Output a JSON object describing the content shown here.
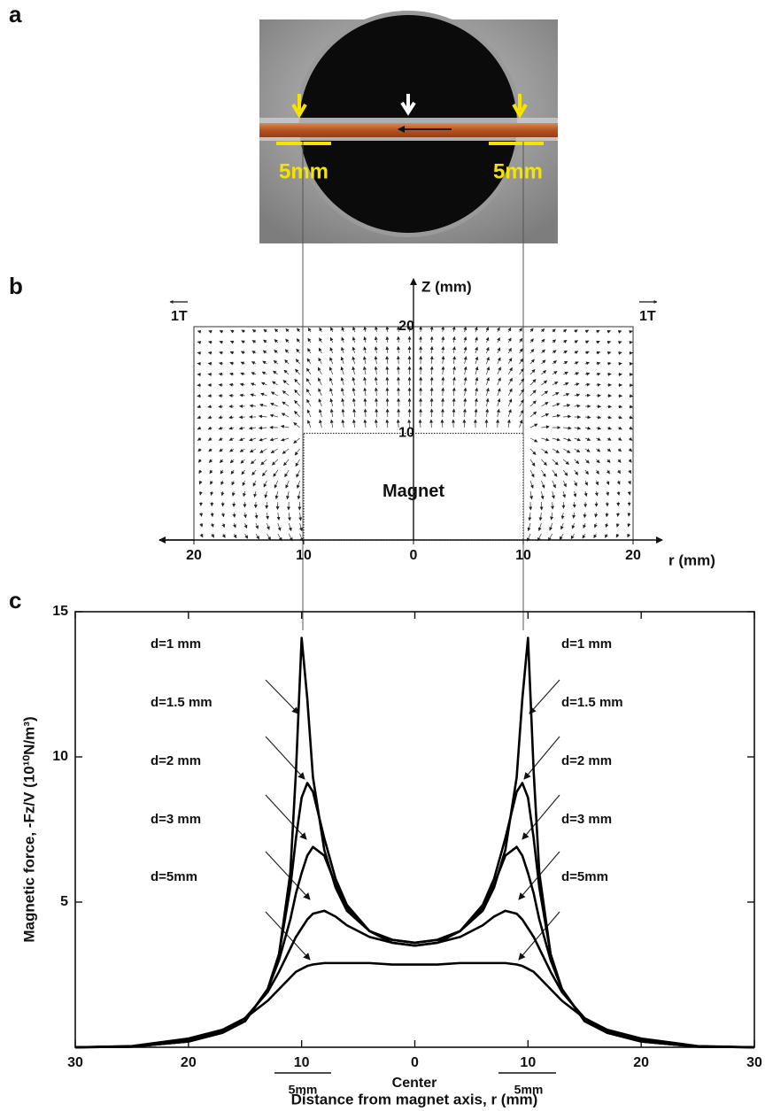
{
  "panel_labels": [
    "a",
    "b",
    "c"
  ],
  "photo": {
    "labels": [
      "5mm",
      "5mm"
    ]
  },
  "chart_data": [
    {
      "type": "quiver",
      "ylabel": "Z (mm)",
      "xlabel": "r (mm)",
      "field_labels": [
        "1T",
        "1T"
      ],
      "magnet_label": "Magnet",
      "xlim": [
        -20,
        20
      ],
      "ylim": [
        0,
        20
      ],
      "xticks": [
        {
          "value": -20,
          "label": "20"
        },
        {
          "value": -10,
          "label": "10"
        },
        0,
        10,
        20
      ],
      "yticks": [
        10,
        20
      ]
    },
    {
      "type": "line",
      "ylabel": "Magnetic force, -Fz/V (10¹⁰N/m³)",
      "xlabel": "Distance from magnet axis, r (mm)",
      "center_label": "Center",
      "scale_labels": [
        "5mm",
        "5mm"
      ],
      "annotations": [
        "d=1 mm",
        "d=1.5 mm",
        "d=2 mm",
        "d=3 mm",
        "d=5mm",
        "d=1 mm",
        "d=1.5 mm",
        "d=2 mm",
        "d=3 mm",
        "d=5mm"
      ],
      "xlim": [
        -30,
        30
      ],
      "ylim": [
        0,
        15
      ],
      "xticks": [
        {
          "value": -30,
          "label": "30"
        },
        {
          "value": -20,
          "label": "20"
        },
        {
          "value": -10,
          "label": "10"
        },
        0,
        10,
        20,
        30
      ],
      "yticks": [
        5,
        10,
        15
      ],
      "x": [
        -30,
        -25,
        -20,
        -17,
        -15,
        -13,
        -12,
        -11,
        -10.5,
        -10,
        -9.5,
        -9,
        -8,
        -7,
        -6,
        -4,
        -2,
        0,
        2,
        4,
        6,
        7,
        8,
        9,
        9.5,
        10,
        10.5,
        11,
        12,
        13,
        15,
        17,
        20,
        25,
        30
      ],
      "series": [
        {
          "name": "d=1 mm",
          "color": "#000000",
          "values": [
            0,
            0.02,
            0.2,
            0.5,
            0.9,
            2.0,
            3.2,
            6.0,
            9.5,
            14.1,
            12.0,
            9.3,
            6.8,
            5.5,
            4.7,
            4.0,
            3.7,
            3.6,
            3.7,
            4.0,
            4.7,
            5.5,
            6.8,
            9.3,
            12.0,
            14.1,
            9.5,
            6.0,
            3.2,
            2.0,
            0.9,
            0.5,
            0.2,
            0.02,
            0
          ]
        },
        {
          "name": "d=1.5 mm",
          "color": "#000000",
          "values": [
            0,
            0.02,
            0.2,
            0.5,
            0.9,
            2.0,
            3.2,
            5.5,
            7.2,
            8.6,
            9.1,
            8.8,
            7.2,
            5.8,
            4.9,
            4.0,
            3.7,
            3.6,
            3.7,
            4.0,
            4.9,
            5.8,
            7.2,
            8.8,
            9.1,
            8.6,
            7.2,
            5.5,
            3.2,
            2.0,
            0.9,
            0.5,
            0.2,
            0.02,
            0
          ]
        },
        {
          "name": "d=2 mm",
          "color": "#000000",
          "values": [
            0,
            0.02,
            0.2,
            0.5,
            0.9,
            2.0,
            3.0,
            4.4,
            5.3,
            6.0,
            6.6,
            6.9,
            6.6,
            5.6,
            4.8,
            4.0,
            3.6,
            3.5,
            3.6,
            4.0,
            4.8,
            5.6,
            6.6,
            6.9,
            6.6,
            6.0,
            5.3,
            4.4,
            3.0,
            2.0,
            0.9,
            0.5,
            0.2,
            0.02,
            0
          ]
        },
        {
          "name": "d=3 mm",
          "color": "#000000",
          "values": [
            0,
            0.03,
            0.25,
            0.55,
            1.0,
            1.9,
            2.6,
            3.4,
            3.8,
            4.1,
            4.4,
            4.6,
            4.7,
            4.5,
            4.2,
            3.8,
            3.6,
            3.5,
            3.6,
            3.8,
            4.2,
            4.5,
            4.7,
            4.6,
            4.4,
            4.1,
            3.8,
            3.4,
            2.6,
            1.9,
            1.0,
            0.55,
            0.25,
            0.03,
            0
          ]
        },
        {
          "name": "d=5mm",
          "color": "#000000",
          "values": [
            0,
            0.04,
            0.3,
            0.6,
            1.0,
            1.6,
            2.0,
            2.4,
            2.6,
            2.7,
            2.8,
            2.85,
            2.9,
            2.9,
            2.9,
            2.9,
            2.85,
            2.85,
            2.85,
            2.9,
            2.9,
            2.9,
            2.9,
            2.85,
            2.8,
            2.7,
            2.6,
            2.4,
            2.0,
            1.6,
            1.0,
            0.6,
            0.3,
            0.04,
            0
          ]
        }
      ]
    }
  ]
}
